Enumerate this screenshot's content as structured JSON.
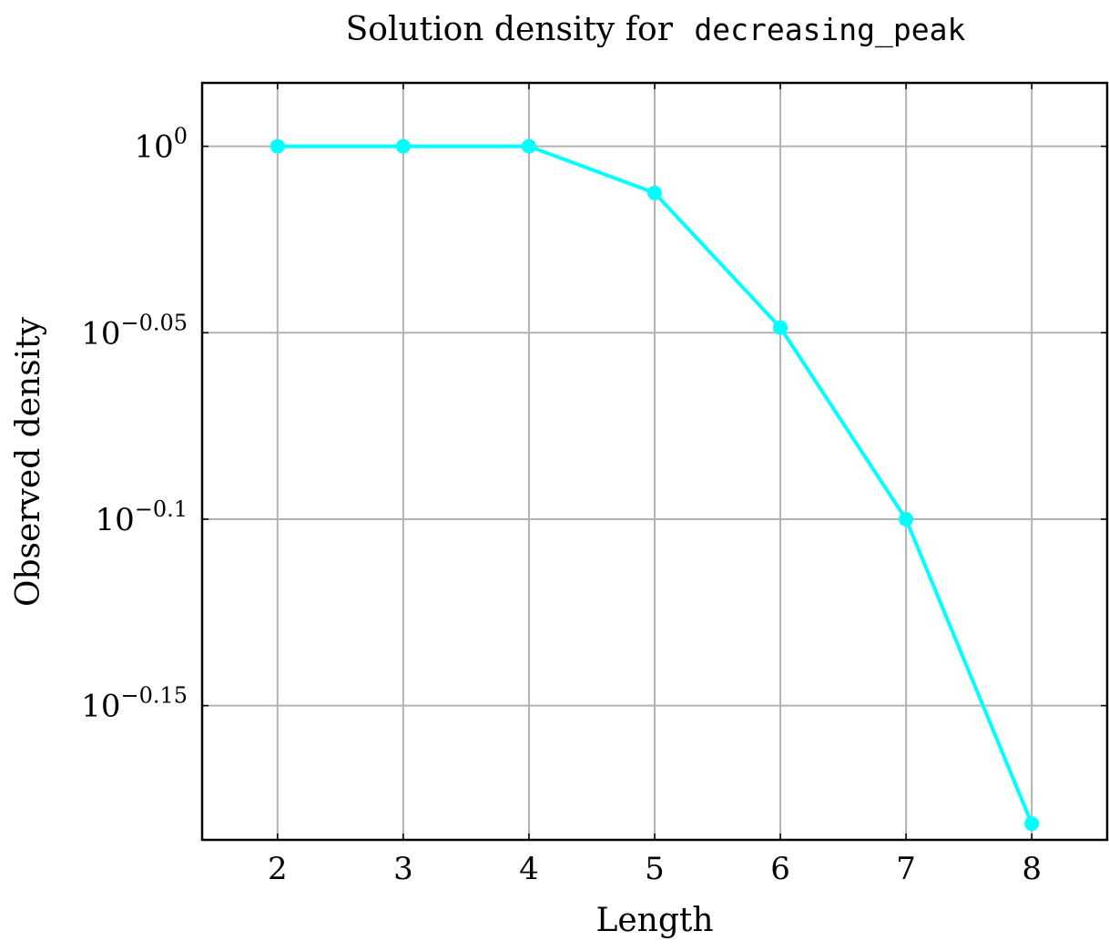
{
  "chart_data": {
    "type": "line",
    "title": "Solution density for",
    "title_code": "decreasing_peak",
    "xlabel": "Length",
    "ylabel": "Observed density",
    "y_scale": "log10",
    "x_ticks": [
      2,
      3,
      4,
      5,
      6,
      7,
      8
    ],
    "y_ticks": [
      {
        "base": "10",
        "exponent": "0",
        "value_log10": 0
      },
      {
        "base": "10",
        "exponent": "−0.05",
        "value_log10": -0.05
      },
      {
        "base": "10",
        "exponent": "−0.1",
        "value_log10": -0.1
      },
      {
        "base": "10",
        "exponent": "−0.15",
        "value_log10": -0.15
      }
    ],
    "xlim": [
      1.4,
      8.6
    ],
    "ylim_log10": [
      -0.186,
      0.017
    ],
    "grid": true,
    "series": [
      {
        "color": "#00ffff",
        "x": [
          2,
          3,
          4,
          5,
          6,
          7,
          8
        ],
        "y": [
          1.0,
          1.0,
          1.0,
          0.9716,
          0.8941,
          0.7943,
          0.6582
        ]
      }
    ]
  }
}
